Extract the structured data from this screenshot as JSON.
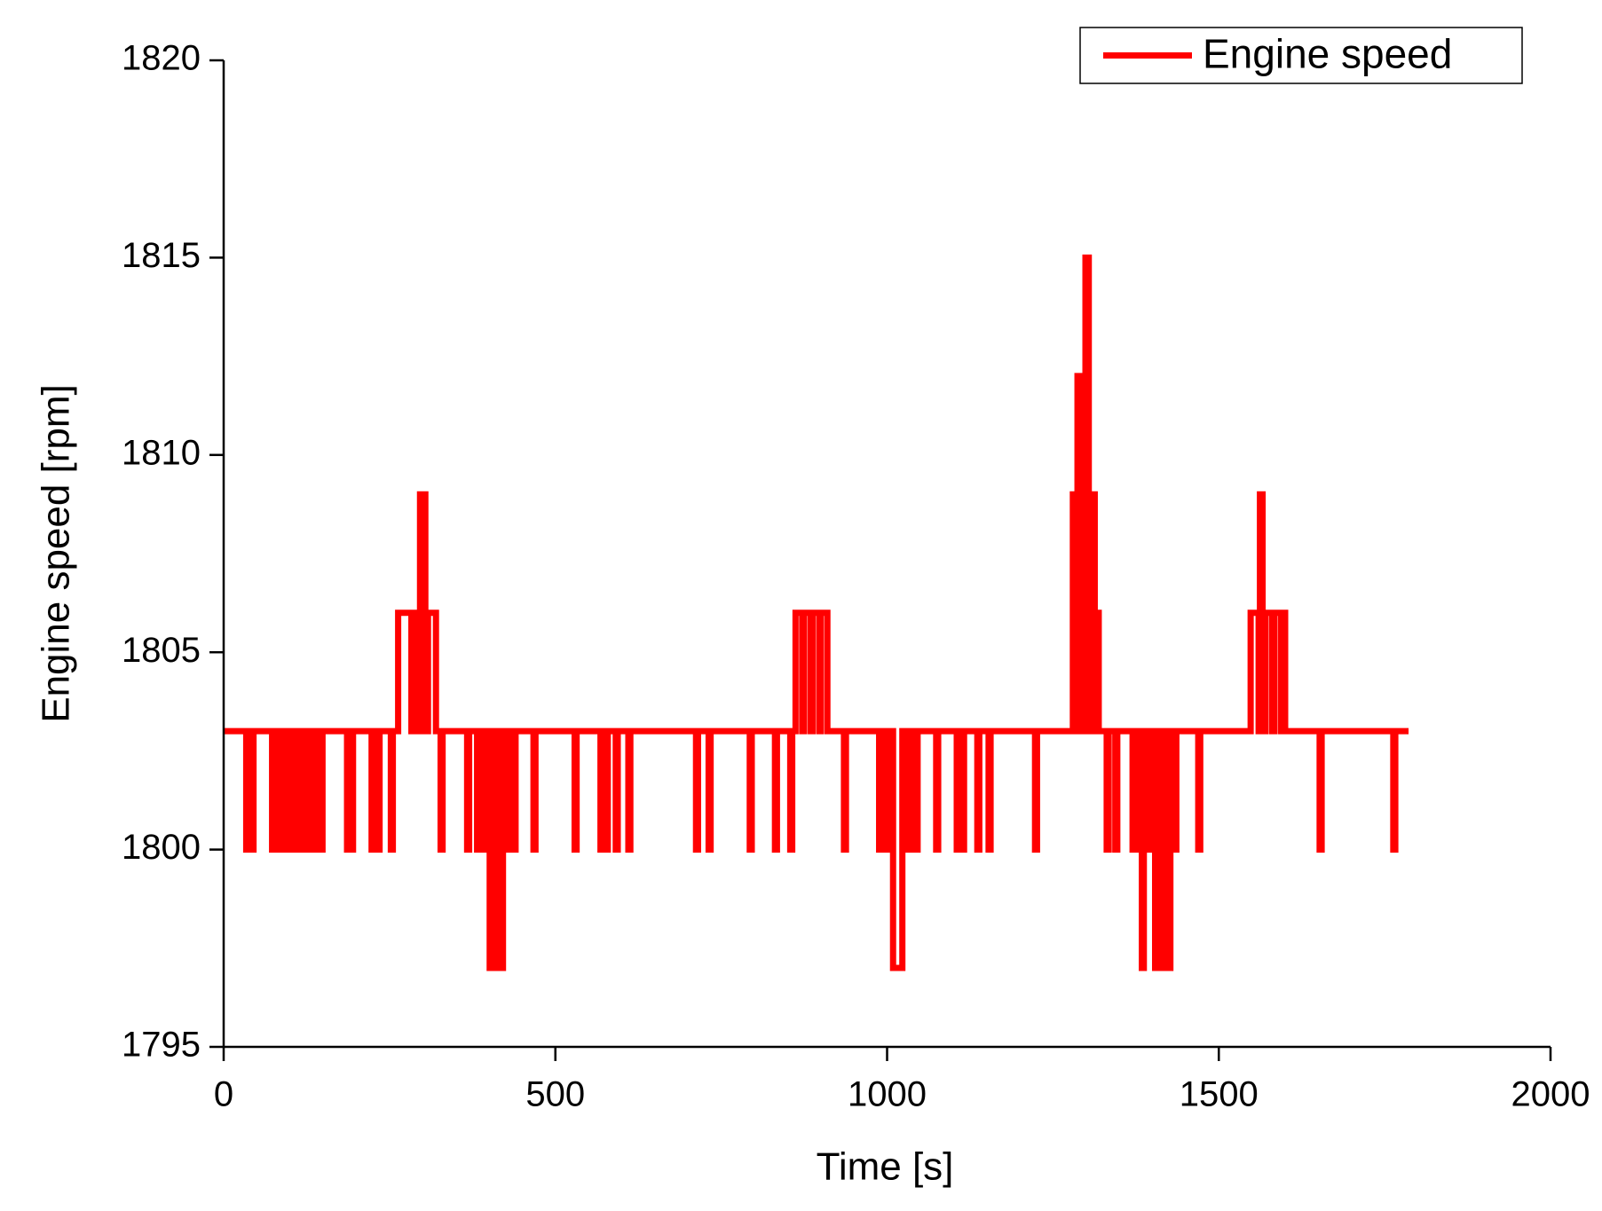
{
  "chart_data": {
    "type": "line",
    "xlabel": "Time [s]",
    "ylabel": "Engine speed [rpm]",
    "xlim": [
      0,
      2000
    ],
    "xticks": [
      0,
      500,
      1000,
      1500,
      2000
    ],
    "ylim": [
      1795,
      1820
    ],
    "yticks": [
      1795,
      1800,
      1805,
      1810,
      1815,
      1820
    ],
    "legend": "upper right",
    "grid": false,
    "x": [
      0,
      34,
      34,
      37,
      37,
      42,
      42,
      45,
      45,
      73,
      73,
      77,
      77,
      82,
      82,
      86,
      86,
      90,
      90,
      94,
      94,
      98,
      98,
      103,
      103,
      106,
      106,
      110,
      110,
      114,
      114,
      118,
      118,
      120,
      120,
      125,
      125,
      128,
      128,
      132,
      132,
      136,
      136,
      140,
      140,
      144,
      144,
      149,
      149,
      186,
      186,
      189,
      189,
      192,
      192,
      195,
      195,
      223,
      223,
      227,
      227,
      232,
      232,
      235,
      235,
      252,
      252,
      255,
      255,
      263,
      263,
      283,
      283,
      286,
      286,
      290,
      290,
      296,
      296,
      304,
      304,
      308,
      308,
      320,
      320,
      327,
      327,
      330,
      330,
      367,
      367,
      370,
      370,
      382,
      382,
      388,
      388,
      392,
      392,
      398,
      398,
      401,
      401,
      409,
      409,
      412,
      412,
      421,
      421,
      424,
      424,
      430,
      430,
      434,
      434,
      440,
      440,
      467,
      467,
      470,
      470,
      529,
      529,
      532,
      532,
      568,
      568,
      571,
      571,
      576,
      576,
      579,
      579,
      591,
      591,
      594,
      594,
      610,
      610,
      613,
      613,
      712,
      712,
      715,
      715,
      731,
      731,
      734,
      734,
      793,
      793,
      796,
      796,
      831,
      831,
      834,
      834,
      854,
      854,
      857,
      857,
      862,
      862,
      872,
      872,
      875,
      875,
      885,
      885,
      888,
      888,
      898,
      898,
      900,
      900,
      910,
      910,
      935,
      935,
      938,
      938,
      988,
      988,
      996,
      996,
      999,
      999,
      1007,
      1007,
      1009,
      1009,
      1023,
      1023,
      1026,
      1026,
      1034,
      1034,
      1038,
      1038,
      1046,
      1046,
      1074,
      1074,
      1077,
      1077,
      1105,
      1105,
      1108,
      1108,
      1113,
      1113,
      1116,
      1116,
      1136,
      1136,
      1139,
      1139,
      1153,
      1153,
      1156,
      1156,
      1223,
      1223,
      1226,
      1226,
      1280,
      1280,
      1285,
      1285,
      1287,
      1287,
      1292,
      1292,
      1294,
      1294,
      1297,
      1297,
      1299,
      1299,
      1304,
      1304,
      1307,
      1307,
      1313,
      1313,
      1316,
      1316,
      1319,
      1319,
      1331,
      1331,
      1334,
      1334,
      1344,
      1344,
      1347,
      1347,
      1370,
      1370,
      1378,
      1378,
      1384,
      1384,
      1387,
      1387,
      1390,
      1390,
      1398,
      1398,
      1404,
      1404,
      1408,
      1408,
      1412,
      1412,
      1416,
      1416,
      1418,
      1418,
      1422,
      1422,
      1423,
      1423,
      1427,
      1427,
      1430,
      1430,
      1436,
      1436,
      1469,
      1469,
      1472,
      1472,
      1548,
      1548,
      1560,
      1560,
      1562,
      1562,
      1566,
      1566,
      1570,
      1570,
      1580,
      1580,
      1584,
      1584,
      1594,
      1594,
      1596,
      1596,
      1600,
      1600,
      1652,
      1652,
      1655,
      1655,
      1763,
      1763,
      1766,
      1766,
      1786
    ],
    "series": [
      {
        "name": "Engine speed",
        "color": "#ff0000",
        "values": [
          1803,
          1803,
          1800,
          1800,
          1803,
          1803,
          1800,
          1800,
          1803,
          1803,
          1800,
          1800,
          1803,
          1803,
          1800,
          1800,
          1803,
          1803,
          1800,
          1800,
          1803,
          1803,
          1800,
          1800,
          1803,
          1803,
          1800,
          1800,
          1803,
          1803,
          1800,
          1800,
          1803,
          1803,
          1800,
          1800,
          1803,
          1803,
          1800,
          1800,
          1803,
          1803,
          1800,
          1800,
          1803,
          1803,
          1800,
          1800,
          1803,
          1803,
          1800,
          1800,
          1803,
          1803,
          1800,
          1800,
          1803,
          1803,
          1800,
          1800,
          1803,
          1803,
          1800,
          1800,
          1803,
          1803,
          1800,
          1800,
          1803,
          1803,
          1806,
          1806,
          1803,
          1803,
          1806,
          1806,
          1803,
          1803,
          1809,
          1809,
          1803,
          1803,
          1806,
          1806,
          1803,
          1803,
          1800,
          1800,
          1803,
          1803,
          1800,
          1800,
          1803,
          1803,
          1800,
          1800,
          1803,
          1803,
          1800,
          1800,
          1803,
          1803,
          1797,
          1797,
          1803,
          1803,
          1797,
          1797,
          1803,
          1803,
          1800,
          1800,
          1803,
          1803,
          1800,
          1800,
          1803,
          1803,
          1800,
          1800,
          1803,
          1803,
          1800,
          1800,
          1803,
          1803,
          1800,
          1800,
          1803,
          1803,
          1800,
          1800,
          1803,
          1803,
          1800,
          1800,
          1803,
          1803,
          1800,
          1800,
          1803,
          1803,
          1800,
          1800,
          1803,
          1803,
          1800,
          1800,
          1803,
          1803,
          1800,
          1800,
          1803,
          1803,
          1800,
          1800,
          1803,
          1803,
          1800,
          1800,
          1803,
          1803,
          1806,
          1806,
          1803,
          1803,
          1806,
          1806,
          1803,
          1803,
          1806,
          1806,
          1803,
          1803,
          1806,
          1806,
          1803,
          1803,
          1800,
          1800,
          1803,
          1803,
          1800,
          1800,
          1803,
          1803,
          1800,
          1800,
          1803,
          1803,
          1797,
          1797,
          1803,
          1803,
          1800,
          1800,
          1803,
          1803,
          1800,
          1800,
          1803,
          1803,
          1800,
          1800,
          1803,
          1803,
          1800,
          1800,
          1803,
          1803,
          1800,
          1800,
          1803,
          1803,
          1800,
          1800,
          1803,
          1803,
          1800,
          1800,
          1803,
          1803,
          1800,
          1800,
          1803,
          1803,
          1809,
          1809,
          1803,
          1803,
          1812,
          1812,
          1803,
          1803,
          1809,
          1809,
          1803,
          1803,
          1815,
          1815,
          1803,
          1803,
          1809,
          1809,
          1803,
          1803,
          1806,
          1806,
          1803,
          1803,
          1800,
          1800,
          1803,
          1803,
          1800,
          1800,
          1803,
          1803,
          1800,
          1800,
          1803,
          1803,
          1797,
          1797,
          1803,
          1803,
          1800,
          1800,
          1803,
          1803,
          1797,
          1797,
          1803,
          1803,
          1797,
          1797,
          1803,
          1803,
          1800,
          1800,
          1803,
          1803,
          1797,
          1797,
          1803,
          1803,
          1800,
          1800,
          1803,
          1803,
          1800,
          1800,
          1803,
          1803,
          1806,
          1806,
          1803,
          1803,
          1809,
          1809,
          1803,
          1803,
          1806,
          1806,
          1803,
          1803,
          1806,
          1806,
          1803,
          1803,
          1806,
          1806,
          1803,
          1803,
          1800,
          1800,
          1803,
          1803,
          1800,
          1800,
          1803,
          1803
        ]
      }
    ]
  }
}
